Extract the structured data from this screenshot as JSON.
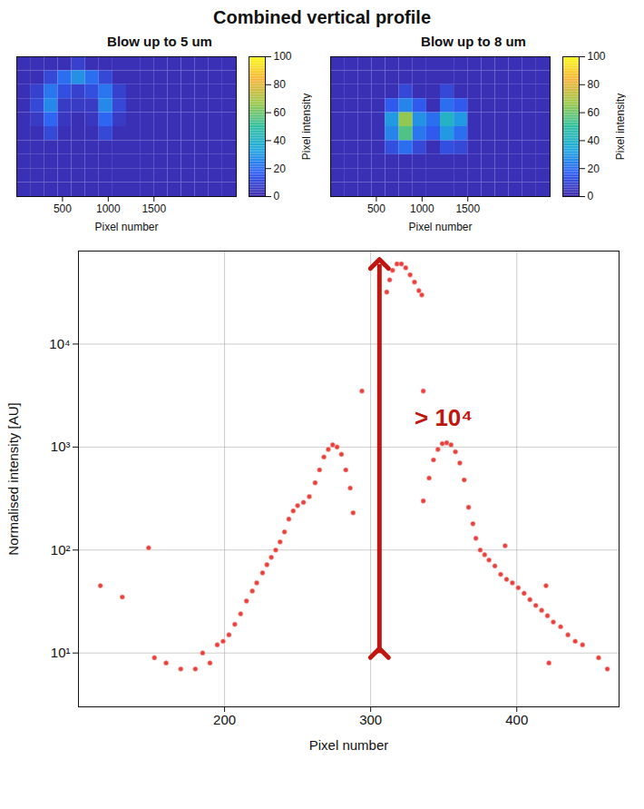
{
  "chart_data": [
    {
      "type": "scatter",
      "title": "Combined vertical profile",
      "x_label": "Pixel number",
      "y_label": "Normalised intensity [AU]",
      "log": "y",
      "grid": true,
      "color": "#e8403a",
      "marker": "circle",
      "xlim": [
        100,
        470
      ],
      "ylim": [
        3,
        80000
      ],
      "xticks": [
        200,
        300,
        400
      ],
      "yticks": [
        {
          "value": 10,
          "label": "10¹"
        },
        {
          "value": 100,
          "label": "10²"
        },
        {
          "value": 1000,
          "label": "10³"
        },
        {
          "value": 10000,
          "label": "10⁴"
        }
      ],
      "x": [
        311,
        313,
        315,
        318,
        321,
        324,
        327,
        330,
        333,
        335,
        294,
        336,
        262,
        265,
        268,
        271,
        274,
        277,
        280,
        283,
        286,
        288,
        258,
        254,
        250,
        247,
        244,
        241,
        238,
        235,
        232,
        229,
        226,
        222,
        219,
        215,
        211,
        207,
        203,
        199,
        195,
        148,
        115,
        152,
        160,
        170,
        180,
        185,
        130,
        190,
        340,
        343,
        346,
        349,
        352,
        355,
        358,
        361,
        364,
        336,
        367,
        370,
        372,
        375,
        378,
        381,
        385,
        389,
        393,
        397,
        401,
        405,
        409,
        413,
        417,
        421,
        425,
        430,
        435,
        440,
        445,
        456,
        422,
        462,
        392,
        420
      ],
      "values": [
        32000,
        42000,
        52000,
        60000,
        60000,
        55000,
        47000,
        40000,
        33000,
        30000,
        3500,
        3500,
        450,
        600,
        800,
        950,
        1050,
        1000,
        850,
        600,
        400,
        230,
        330,
        290,
        270,
        240,
        200,
        150,
        120,
        100,
        85,
        72,
        60,
        48,
        40,
        32,
        24,
        19,
        15,
        13,
        12,
        105,
        45,
        9,
        8,
        7,
        7,
        10,
        35,
        8,
        500,
        750,
        950,
        1080,
        1100,
        1050,
        900,
        700,
        480,
        300,
        260,
        180,
        130,
        100,
        90,
        80,
        70,
        58,
        52,
        48,
        43,
        38,
        33,
        29,
        26,
        23,
        20,
        18,
        15,
        13,
        12,
        9,
        8,
        7,
        110,
        45
      ],
      "annotations": [
        {
          "text": "> 10⁴",
          "x": 330,
          "y": 1900,
          "arrow": {
            "x": 306,
            "y1": 10,
            "y2": 60000
          }
        }
      ]
    },
    {
      "type": "heatmap",
      "title": "Blow up to 5 um",
      "x_label": "Pixel number",
      "tick_labels": "x",
      "xlim": [
        0,
        2400
      ],
      "xticks": [
        500,
        1000,
        1500
      ],
      "cells": [
        [
          3,
          3,
          3,
          3,
          8,
          3,
          3,
          3,
          3,
          3,
          3,
          3,
          3,
          3,
          3,
          3
        ],
        [
          3,
          3,
          10,
          20,
          28,
          20,
          10,
          3,
          3,
          3,
          3,
          3,
          3,
          3,
          3,
          3
        ],
        [
          3,
          8,
          22,
          12,
          8,
          12,
          22,
          8,
          3,
          3,
          3,
          3,
          3,
          3,
          3,
          3
        ],
        [
          3,
          10,
          26,
          6,
          6,
          6,
          26,
          10,
          3,
          3,
          3,
          3,
          3,
          3,
          3,
          3
        ],
        [
          3,
          6,
          18,
          5,
          3,
          5,
          18,
          6,
          3,
          3,
          3,
          3,
          3,
          3,
          3,
          3
        ],
        [
          3,
          3,
          10,
          3,
          3,
          3,
          10,
          3,
          3,
          3,
          3,
          3,
          3,
          3,
          3,
          3
        ],
        [
          3,
          3,
          3,
          3,
          3,
          3,
          3,
          3,
          3,
          3,
          3,
          3,
          3,
          3,
          3,
          3
        ],
        [
          3,
          3,
          3,
          3,
          3,
          3,
          3,
          3,
          3,
          3,
          3,
          3,
          3,
          3,
          3,
          3
        ],
        [
          3,
          3,
          3,
          3,
          3,
          3,
          3,
          3,
          3,
          3,
          3,
          3,
          3,
          3,
          3,
          3
        ],
        [
          3,
          3,
          3,
          3,
          3,
          3,
          3,
          3,
          3,
          3,
          3,
          3,
          3,
          3,
          3,
          3
        ]
      ],
      "colorbar_label": "Pixel intensity",
      "colorbar_range": [
        0,
        100
      ],
      "colorbar_ticks": [
        0,
        20,
        40,
        60,
        80,
        100
      ]
    },
    {
      "type": "heatmap",
      "title": "Blow up to 8 um",
      "x_label": "Pixel number",
      "tick_labels": "x",
      "xlim": [
        0,
        2400
      ],
      "xticks": [
        500,
        1000,
        1500
      ],
      "cells": [
        [
          3,
          3,
          3,
          3,
          3,
          3,
          3,
          3,
          3,
          3,
          3,
          3,
          3,
          3,
          3,
          3
        ],
        [
          3,
          3,
          3,
          3,
          3,
          3,
          3,
          3,
          3,
          3,
          3,
          3,
          3,
          3,
          3,
          3
        ],
        [
          3,
          3,
          3,
          3,
          3,
          10,
          3,
          3,
          10,
          3,
          3,
          3,
          3,
          3,
          3,
          3
        ],
        [
          3,
          3,
          3,
          3,
          15,
          25,
          15,
          3,
          20,
          15,
          3,
          3,
          3,
          3,
          3,
          3
        ],
        [
          3,
          3,
          3,
          3,
          30,
          65,
          28,
          20,
          40,
          30,
          3,
          3,
          3,
          3,
          3,
          3
        ],
        [
          3,
          3,
          3,
          3,
          25,
          55,
          22,
          15,
          30,
          20,
          3,
          3,
          3,
          3,
          3,
          3
        ],
        [
          3,
          3,
          3,
          3,
          12,
          20,
          10,
          3,
          12,
          10,
          3,
          3,
          3,
          3,
          3,
          3
        ],
        [
          3,
          3,
          3,
          3,
          3,
          3,
          3,
          3,
          3,
          3,
          3,
          3,
          3,
          3,
          3,
          3
        ],
        [
          3,
          3,
          3,
          3,
          3,
          3,
          3,
          3,
          3,
          3,
          3,
          3,
          3,
          3,
          3,
          3
        ],
        [
          3,
          3,
          3,
          3,
          3,
          3,
          3,
          3,
          3,
          3,
          3,
          3,
          3,
          3,
          3,
          3
        ]
      ],
      "colorbar_label": "Pixel intensity",
      "colorbar_range": [
        0,
        100
      ],
      "colorbar_ticks": [
        0,
        20,
        40,
        60,
        80,
        100
      ]
    }
  ]
}
